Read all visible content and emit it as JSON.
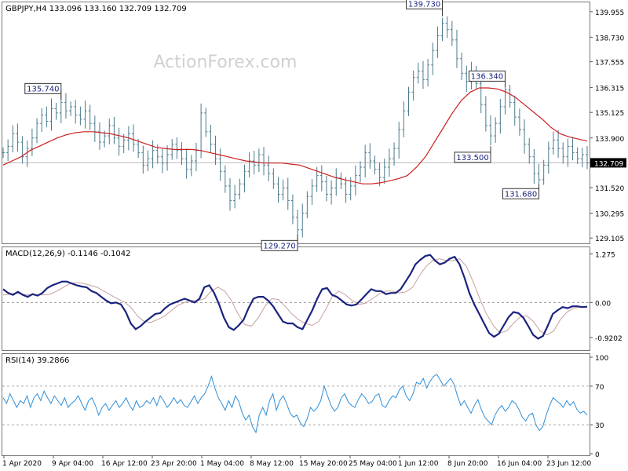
{
  "chart_data": [
    {
      "panel": "price",
      "type": "ohlc",
      "title": "GBPJPY,H4  133.096 133.160 132.709 132.709",
      "watermark": "ActionForex.com",
      "ylim": [
        128.85,
        140.4
      ],
      "y_ticks": [
        "139.955",
        "138.730",
        "137.555",
        "136.315",
        "135.125",
        "133.900",
        "132.709",
        "131.520",
        "130.295",
        "129.105"
      ],
      "y_tick_values": [
        139.955,
        138.73,
        137.555,
        136.315,
        135.125,
        133.9,
        132.709,
        131.52,
        130.295,
        129.105
      ],
      "last_price": 132.709,
      "last_price_label": "132.709",
      "colors": {
        "bars": "#4a7a8c",
        "ma": "#cc1f1f",
        "last_line": "#bbbbbb",
        "label_border": "#333333"
      },
      "series": [
        {
          "type": "bar-close",
          "values": [
            133.2,
            133.5,
            134.1,
            133.7,
            133.0,
            133.4,
            133.9,
            134.6,
            135.0,
            134.7,
            135.3,
            135.1,
            135.6,
            135.2,
            135.4,
            135.0,
            134.8,
            135.2,
            134.6,
            134.2,
            133.7,
            134.0,
            134.5,
            133.9,
            133.5,
            133.8,
            134.1,
            133.6,
            133.2,
            132.6,
            132.9,
            133.3,
            133.0,
            132.7,
            133.1,
            133.6,
            133.3,
            132.9,
            132.4,
            132.8,
            133.3,
            135.1,
            134.2,
            133.6,
            132.9,
            132.3,
            131.6,
            130.9,
            131.2,
            131.7,
            132.3,
            132.8,
            132.6,
            133.1,
            132.6,
            132.2,
            131.7,
            131.2,
            131.5,
            130.9,
            130.1,
            129.5,
            130.3,
            131.1,
            131.6,
            132.1,
            131.8,
            131.2,
            131.5,
            132.0,
            131.7,
            131.2,
            131.6,
            132.1,
            132.5,
            133.2,
            132.8,
            132.4,
            132.0,
            132.5,
            132.9,
            133.4,
            134.3,
            135.2,
            136.1,
            136.8,
            137.1,
            136.7,
            137.4,
            138.1,
            138.8,
            139.4,
            139.1,
            138.6,
            137.7,
            137.0,
            136.6,
            137.1,
            136.5,
            135.5,
            134.5,
            134.0,
            134.6,
            135.4,
            136.2,
            135.6,
            134.9,
            134.3,
            133.6,
            133.0,
            132.2,
            131.9,
            132.6,
            133.4,
            133.8,
            133.4,
            133.0,
            133.5,
            133.2,
            132.9,
            133.1,
            132.7
          ]
        },
        {
          "type": "moving-average",
          "values": [
            132.6,
            132.8,
            133.0,
            133.3,
            133.5,
            133.7,
            133.9,
            134.05,
            134.15,
            134.2,
            134.2,
            134.15,
            134.1,
            134.0,
            133.9,
            133.75,
            133.6,
            133.45,
            133.4,
            133.35,
            133.35,
            133.35,
            133.3,
            133.2,
            133.1,
            133.0,
            132.9,
            132.8,
            132.75,
            132.7,
            132.7,
            132.7,
            132.65,
            132.6,
            132.45,
            132.3,
            132.15,
            132.0,
            131.9,
            131.8,
            131.7,
            131.7,
            131.75,
            131.85,
            131.95,
            132.1,
            132.5,
            133.0,
            133.7,
            134.4,
            135.1,
            135.7,
            136.1,
            136.3,
            136.3,
            136.25,
            136.1,
            135.85,
            135.5,
            135.15,
            134.8,
            134.4,
            134.1,
            133.95,
            133.85,
            133.75
          ]
        }
      ],
      "annotations": [
        {
          "label": "135.740",
          "value": 135.74
        },
        {
          "label": "139.730",
          "value": 139.73
        },
        {
          "label": "129.270",
          "value": 129.27
        },
        {
          "label": "136.340",
          "value": 136.34
        },
        {
          "label": "133.500",
          "value": 133.5
        },
        {
          "label": "131.680",
          "value": 131.68
        }
      ]
    },
    {
      "panel": "macd",
      "type": "line",
      "title": "MACD(12,26,9) -0.1146 -0.1042",
      "ylim": [
        -1.25,
        1.45
      ],
      "y_ticks": [
        "1.275",
        "0.00",
        "-0.9202"
      ],
      "y_tick_values": [
        1.275,
        0.0,
        -0.9202
      ],
      "colors": {
        "macd": "#1a237e",
        "signal": "#c7a0a0",
        "zero": "#999999"
      },
      "series": [
        {
          "name": "MACD",
          "values": [
            0.35,
            0.25,
            0.2,
            0.28,
            0.2,
            0.15,
            0.22,
            0.18,
            0.25,
            0.38,
            0.45,
            0.5,
            0.55,
            0.55,
            0.5,
            0.45,
            0.42,
            0.4,
            0.3,
            0.25,
            0.15,
            0.05,
            -0.02,
            0.0,
            -0.05,
            -0.25,
            -0.55,
            -0.7,
            -0.62,
            -0.5,
            -0.4,
            -0.3,
            -0.28,
            -0.15,
            -0.05,
            0.0,
            0.05,
            0.1,
            0.05,
            0.0,
            0.1,
            0.4,
            0.45,
            0.25,
            -0.05,
            -0.4,
            -0.65,
            -0.72,
            -0.6,
            -0.45,
            -0.15,
            0.1,
            0.15,
            0.15,
            0.05,
            -0.1,
            -0.3,
            -0.5,
            -0.55,
            -0.55,
            -0.65,
            -0.7,
            -0.45,
            -0.2,
            0.1,
            0.35,
            0.38,
            0.2,
            0.15,
            0.05,
            -0.05,
            -0.08,
            -0.05,
            0.08,
            0.22,
            0.35,
            0.3,
            0.3,
            0.22,
            0.25,
            0.25,
            0.35,
            0.55,
            0.75,
            1.0,
            1.12,
            1.22,
            1.25,
            1.1,
            1.0,
            1.05,
            1.15,
            1.2,
            1.0,
            0.65,
            0.25,
            -0.05,
            -0.3,
            -0.55,
            -0.8,
            -0.9,
            -0.82,
            -0.6,
            -0.38,
            -0.25,
            -0.28,
            -0.4,
            -0.62,
            -0.85,
            -0.95,
            -0.88,
            -0.6,
            -0.3,
            -0.2,
            -0.12,
            -0.15,
            -0.1,
            -0.1,
            -0.12,
            -0.11
          ]
        },
        {
          "name": "Signal",
          "values": [
            0.2,
            0.22,
            0.25,
            0.22,
            0.2,
            0.2,
            0.2,
            0.22,
            0.3,
            0.4,
            0.5,
            0.52,
            0.5,
            0.45,
            0.4,
            0.3,
            0.2,
            0.1,
            0.02,
            -0.12,
            -0.35,
            -0.5,
            -0.52,
            -0.45,
            -0.36,
            -0.22,
            -0.08,
            0.0,
            0.05,
            0.05,
            0.1,
            0.3,
            0.4,
            0.3,
            0.05,
            -0.3,
            -0.58,
            -0.62,
            -0.4,
            -0.1,
            0.1,
            0.08,
            -0.1,
            -0.3,
            -0.45,
            -0.55,
            -0.6,
            -0.5,
            -0.2,
            0.15,
            0.3,
            0.2,
            0.05,
            -0.05,
            -0.02,
            0.1,
            0.22,
            0.3,
            0.3,
            0.25,
            0.28,
            0.4,
            0.7,
            0.95,
            1.1,
            1.15,
            1.1,
            1.1,
            1.15,
            0.95,
            0.55,
            0.1,
            -0.3,
            -0.6,
            -0.8,
            -0.75,
            -0.55,
            -0.38,
            -0.35,
            -0.5,
            -0.75,
            -0.85,
            -0.75,
            -0.45,
            -0.25,
            -0.15,
            -0.12,
            -0.1
          ]
        }
      ]
    },
    {
      "panel": "rsi",
      "type": "line",
      "title": "RSI(14) 39.2866",
      "ylim": [
        0,
        100
      ],
      "y_ticks": [
        "100",
        "70",
        "30",
        "0"
      ],
      "y_tick_values": [
        100,
        70,
        30,
        0
      ],
      "levels": [
        70,
        30
      ],
      "colors": {
        "rsi": "#2f8fd8",
        "levels": "#aaaaaa"
      },
      "series": [
        {
          "name": "RSI(14)",
          "values": [
            58,
            52,
            62,
            55,
            48,
            55,
            52,
            60,
            48,
            58,
            62,
            55,
            65,
            58,
            52,
            60,
            55,
            50,
            58,
            48,
            52,
            55,
            60,
            52,
            45,
            55,
            58,
            50,
            40,
            48,
            52,
            45,
            50,
            55,
            48,
            52,
            58,
            50,
            45,
            55,
            48,
            50,
            55,
            52,
            58,
            50,
            60,
            55,
            48,
            52,
            58,
            52,
            56,
            50,
            48,
            54,
            60,
            52,
            58,
            62,
            70,
            80,
            68,
            58,
            52,
            45,
            55,
            48,
            60,
            54,
            42,
            35,
            40,
            28,
            22,
            40,
            48,
            40,
            55,
            62,
            45,
            55,
            60,
            52,
            42,
            38,
            40,
            32,
            28,
            36,
            48,
            44,
            48,
            55,
            70,
            60,
            50,
            44,
            48,
            58,
            62,
            54,
            50,
            48,
            56,
            62,
            58,
            52,
            54,
            60,
            62,
            50,
            48,
            55,
            60,
            58,
            66,
            70,
            60,
            55,
            62,
            74,
            72,
            78,
            68,
            75,
            80,
            82,
            76,
            70,
            74,
            78,
            72,
            60,
            50,
            55,
            48,
            42,
            50,
            56,
            46,
            38,
            34,
            30,
            40,
            46,
            50,
            44,
            48,
            55,
            52,
            46,
            38,
            34,
            40,
            42,
            30,
            24,
            28,
            40,
            50,
            58,
            55,
            52,
            48,
            55,
            50,
            54,
            46,
            42,
            44,
            40
          ]
        }
      ]
    }
  ],
  "x_axis": {
    "labels": [
      "1 Apr 2020",
      "9 Apr 04:00",
      "16 Apr 12:00",
      "23 Apr 20:00",
      "1 May 04:00",
      "8 May 12:00",
      "15 May 20:00",
      "25 May 04:00",
      "1 Jun 12:00",
      "8 Jun 20:00",
      "16 Jun 04:00",
      "23 Jun 12:00"
    ]
  }
}
